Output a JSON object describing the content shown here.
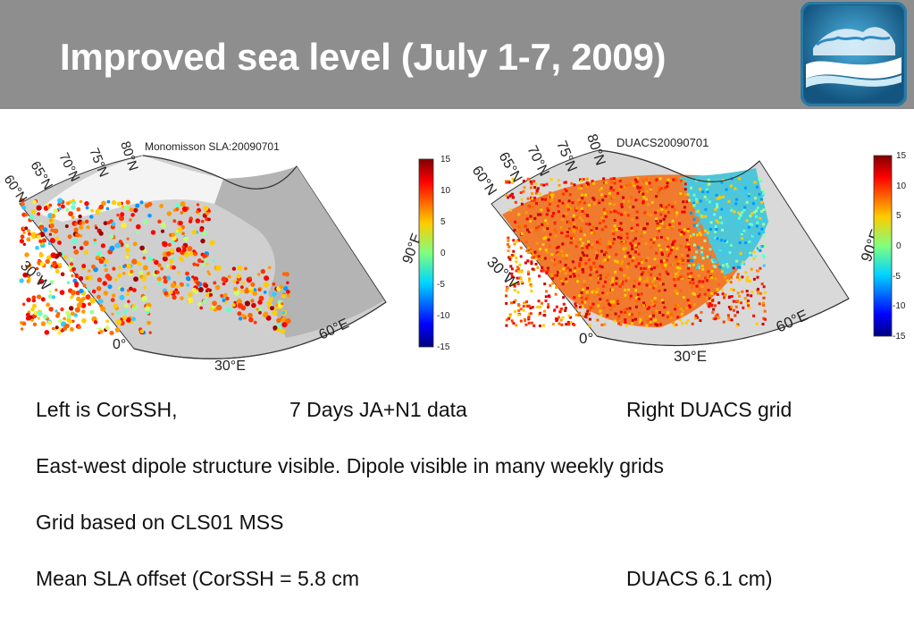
{
  "title": "Improved sea level (July 1-7, 2009)",
  "logo": {
    "icon": "globe-waves-icon"
  },
  "figures": [
    {
      "plot_title": "Monomisson SLA:20090701",
      "lat_labels": [
        "80°N",
        "75°N",
        "70°N",
        "65°N",
        "60°N"
      ],
      "lon_labels": [
        "30°W",
        "0°",
        "30°E",
        "60°E",
        "90°E"
      ],
      "colorbar": {
        "ticks": [
          "15",
          "10",
          "5",
          "0",
          "-5",
          "-10",
          "-15"
        ]
      }
    },
    {
      "plot_title": "DUACS20090701",
      "lat_labels": [
        "80°N",
        "75°N",
        "70°N",
        "65°N",
        "60°N"
      ],
      "lon_labels": [
        "30°W",
        "0°",
        "30°E",
        "60°E",
        "90°E"
      ],
      "colorbar": {
        "ticks": [
          "15",
          "10",
          "5",
          "0",
          "-5",
          "-10",
          "-15"
        ]
      }
    }
  ],
  "lines": [
    [
      "Left is CorSSH,",
      "7 Days JA+N1 data",
      "Right DUACS grid"
    ],
    [
      "East-west dipole structure visible.  Dipole visible in many weekly grids"
    ],
    [
      "Grid based on CLS01 MSS"
    ],
    [
      "Mean SLA offset (CorSSH = 5.8 cm",
      "DUACS 6.1 cm)"
    ]
  ]
}
